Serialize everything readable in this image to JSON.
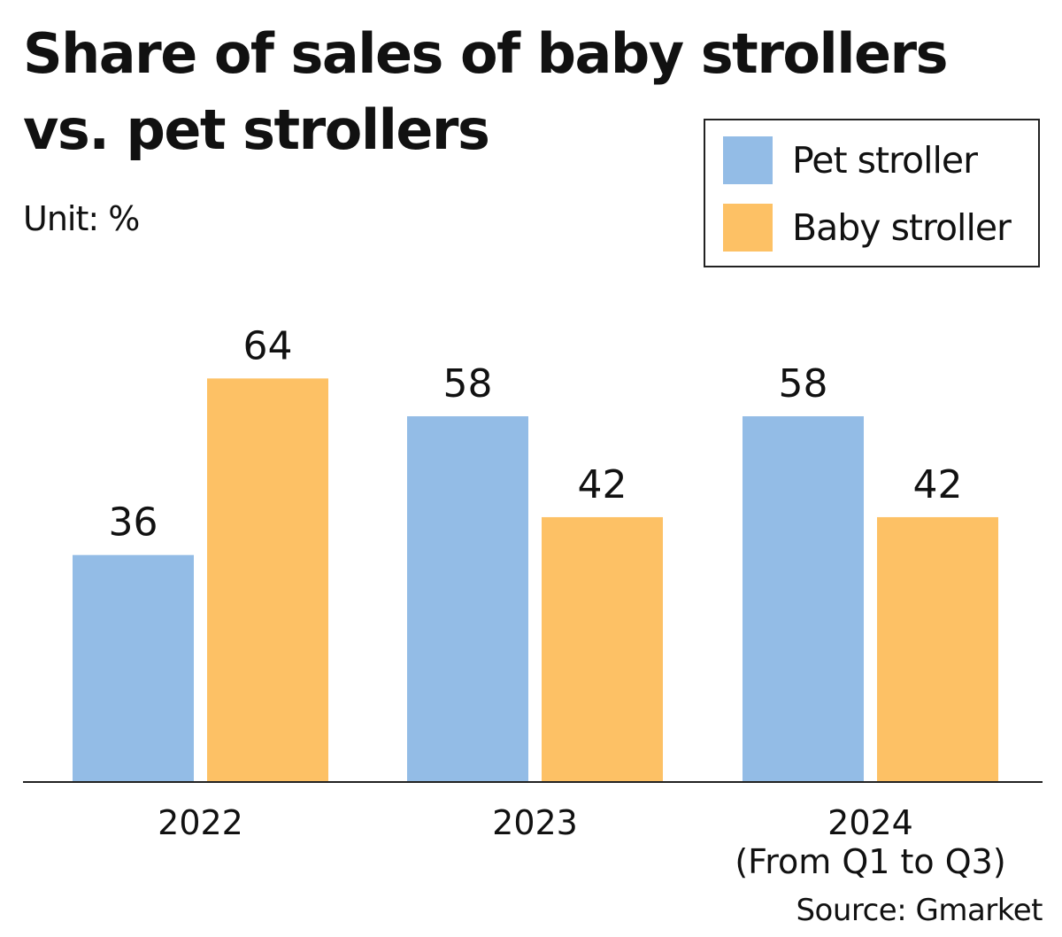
{
  "title": "Share of sales of baby strollers vs. pet strollers",
  "unit": "Unit: %",
  "source": "Source: Gmarket",
  "legend": {
    "items": [
      {
        "label": "Pet stroller",
        "color": "#93bce6"
      },
      {
        "label": "Baby stroller",
        "color": "#fdc165"
      }
    ]
  },
  "chart_data": {
    "type": "bar",
    "title": "Share of sales of baby strollers vs. pet strollers",
    "xlabel": "",
    "ylabel": "Unit: %",
    "ylim": [
      0,
      100
    ],
    "grid": false,
    "legend_position": "top-right",
    "categories": [
      {
        "label": "2022",
        "sublabel": ""
      },
      {
        "label": "2023",
        "sublabel": ""
      },
      {
        "label": "2024",
        "sublabel": "(From Q1 to Q3)"
      }
    ],
    "series": [
      {
        "name": "Pet stroller",
        "color": "#93bce6",
        "values": [
          36,
          58,
          58
        ]
      },
      {
        "name": "Baby stroller",
        "color": "#fdc165",
        "values": [
          64,
          42,
          42
        ]
      }
    ]
  }
}
